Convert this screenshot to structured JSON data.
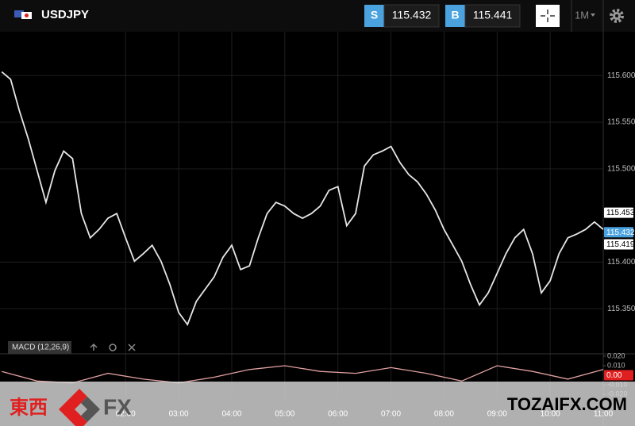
{
  "header": {
    "symbol": "USDJPY",
    "sell_label": "S",
    "sell_price": "115.432",
    "buy_label": "B",
    "buy_price": "115.441",
    "timeframe": "1M"
  },
  "chart_data": [
    {
      "type": "line",
      "x": [
        "23:40",
        "23:50",
        "00:00",
        "00:10",
        "00:20",
        "00:30",
        "00:40",
        "00:50",
        "01:00",
        "01:10",
        "01:20",
        "01:30",
        "01:40",
        "01:50",
        "02:00",
        "02:10",
        "02:20",
        "02:30",
        "02:40",
        "02:50",
        "03:00",
        "03:10",
        "03:20",
        "03:30",
        "03:40",
        "03:50",
        "04:00",
        "04:10",
        "04:20",
        "04:30",
        "04:40",
        "04:50",
        "05:00",
        "05:10",
        "05:20",
        "05:30",
        "05:40",
        "05:50",
        "06:00",
        "06:10",
        "06:20",
        "06:30",
        "06:40",
        "06:50",
        "07:00",
        "07:10",
        "07:20",
        "07:30",
        "07:40",
        "07:50",
        "08:00",
        "08:10",
        "08:20",
        "08:30",
        "08:40",
        "08:50",
        "09:00",
        "09:10",
        "09:20",
        "09:30",
        "09:40",
        "09:50",
        "10:00",
        "10:10",
        "10:20",
        "10:30",
        "10:40",
        "10:50",
        "11:00"
      ],
      "values": [
        115.604,
        115.596,
        115.562,
        115.532,
        115.498,
        115.464,
        115.498,
        115.519,
        115.511,
        115.452,
        115.426,
        115.435,
        115.447,
        115.452,
        115.426,
        115.401,
        115.409,
        115.418,
        115.401,
        115.376,
        115.346,
        115.333,
        115.358,
        115.371,
        115.384,
        115.405,
        115.418,
        115.392,
        115.396,
        115.426,
        115.452,
        115.464,
        115.46,
        115.452,
        115.447,
        115.452,
        115.46,
        115.477,
        115.481,
        115.439,
        115.452,
        115.503,
        115.515,
        115.519,
        115.524,
        115.507,
        115.494,
        115.486,
        115.473,
        115.456,
        115.435,
        115.418,
        115.401,
        115.376,
        115.354,
        115.367,
        115.388,
        115.409,
        115.426,
        115.435,
        115.409,
        115.367,
        115.38,
        115.409,
        115.426,
        115.43,
        115.435,
        115.443,
        115.435
      ],
      "color": "#e6e6e6",
      "xlim": [
        "23:38",
        "11:00"
      ],
      "xticks": [
        "02:00",
        "03:00",
        "04:00",
        "05:00",
        "06:00",
        "07:00",
        "08:00",
        "09:00",
        "10:00",
        "11:00"
      ],
      "ylim": [
        115.3025,
        115.647
      ],
      "yticks": [
        {
          "value": 115.35,
          "label": "115.350"
        },
        {
          "value": 115.4,
          "label": "115.400"
        },
        {
          "value": 115.5,
          "label": "115.500"
        },
        {
          "value": 115.55,
          "label": "115.550"
        },
        {
          "value": 115.6,
          "label": "115.600"
        }
      ],
      "grid": true,
      "price_labels": [
        {
          "value": 115.453,
          "label": "115.453",
          "color": "#ffffff"
        },
        {
          "value": 115.432,
          "label": "115.432",
          "color": "#4aa3df"
        },
        {
          "value": 115.419,
          "label": "115.419",
          "color": "#ffffff"
        }
      ]
    },
    {
      "type": "line",
      "title": "MACD (12,26,9)",
      "x": [
        "23:40",
        "00:20",
        "01:00",
        "01:40",
        "02:20",
        "03:00",
        "03:40",
        "04:20",
        "05:00",
        "05:40",
        "06:20",
        "07:00",
        "07:40",
        "08:20",
        "09:00",
        "09:40",
        "10:20",
        "11:00"
      ],
      "values": [
        0.004,
        -0.006,
        -0.008,
        0.002,
        -0.004,
        -0.008,
        -0.002,
        0.006,
        0.01,
        0.004,
        0.002,
        0.008,
        0.002,
        -0.006,
        0.01,
        0.004,
        -0.004,
        0.006
      ],
      "color": "#e0a0a0",
      "ylim": [
        -0.024,
        0.0216
      ],
      "yticks": [
        {
          "value": 0.02,
          "label": "0.020"
        },
        {
          "value": 0.01,
          "label": "0.010"
        },
        {
          "value": -0.01,
          "label": "-0.010"
        },
        {
          "value": -0.02,
          "label": "-0.020"
        }
      ],
      "price_labels": [
        {
          "value": 0,
          "label": "0.00",
          "color": "#e02020"
        }
      ]
    }
  ],
  "watermark": {
    "brand_cjk": "東西",
    "brand_fx": "FX",
    "site": "TOZAIFX.COM"
  }
}
